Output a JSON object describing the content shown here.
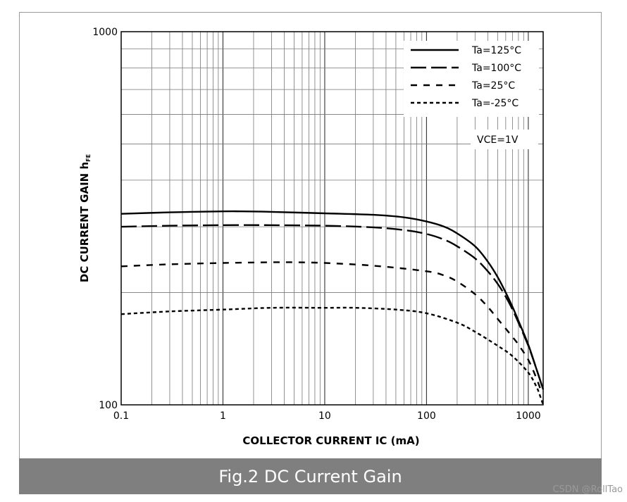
{
  "chart_data": {
    "type": "line",
    "xlabel": "COLLECTOR CURRENT   IC (mA)",
    "ylabel": "DC CURRENT GAIN  h",
    "ylabel_sub": "FE",
    "xscale": "log",
    "yscale": "log",
    "xlim": [
      0.1,
      1400
    ],
    "ylim": [
      100,
      1000
    ],
    "x_ticks": [
      {
        "value": 0.1,
        "label": "0.1"
      },
      {
        "value": 1,
        "label": "1"
      },
      {
        "value": 10,
        "label": "10"
      },
      {
        "value": 100,
        "label": "100"
      },
      {
        "value": 1000,
        "label": "1000"
      }
    ],
    "y_ticks": [
      {
        "value": 100,
        "label": "100"
      },
      {
        "value": 1000,
        "label": "1000"
      }
    ],
    "grid": true,
    "legend_position": "top-right",
    "legend_note": "VCE=1V",
    "series": [
      {
        "name": "Ta=125°C",
        "dash": "solid",
        "x": [
          0.1,
          0.3,
          1,
          1.5,
          3,
          10,
          30,
          60,
          100,
          150,
          200,
          300,
          400,
          500,
          600,
          700,
          800,
          1000,
          1200,
          1400
        ],
        "y": [
          325,
          328,
          330,
          330,
          329,
          326,
          323,
          318,
          310,
          300,
          288,
          266,
          242,
          220,
          200,
          183,
          168,
          145,
          125,
          110
        ]
      },
      {
        "name": "Ta=100°C",
        "dash": "long",
        "x": [
          0.1,
          0.3,
          1,
          3,
          10,
          30,
          60,
          100,
          150,
          200,
          300,
          400,
          500,
          600,
          700,
          800,
          1000,
          1200,
          1400
        ],
        "y": [
          300,
          302,
          303,
          303,
          302,
          299,
          294,
          287,
          277,
          266,
          247,
          228,
          211,
          195,
          180,
          166,
          144,
          125,
          110
        ]
      },
      {
        "name": "Ta=25°C",
        "dash": "medium",
        "x": [
          0.1,
          0.3,
          1,
          3,
          5,
          10,
          30,
          100,
          150,
          200,
          300,
          400,
          500,
          600,
          700,
          800,
          1000,
          1200,
          1350
        ],
        "y": [
          235,
          238,
          240,
          241,
          241,
          240,
          236,
          228,
          222,
          214,
          198,
          183,
          170,
          160,
          152,
          145,
          132,
          118,
          108
        ]
      },
      {
        "name": "Ta=-25°C",
        "dash": "short",
        "x": [
          0.1,
          0.3,
          1,
          3,
          10,
          20,
          50,
          100,
          200,
          300,
          500,
          700,
          1000,
          1200,
          1300,
          1400
        ],
        "y": [
          175,
          178,
          180,
          182,
          182,
          182,
          180,
          176,
          166,
          157,
          144,
          135,
          122,
          112,
          106,
          100
        ]
      }
    ]
  },
  "caption": "Fig.2 DC Current Gain",
  "watermark": "CSDN @RollTao"
}
